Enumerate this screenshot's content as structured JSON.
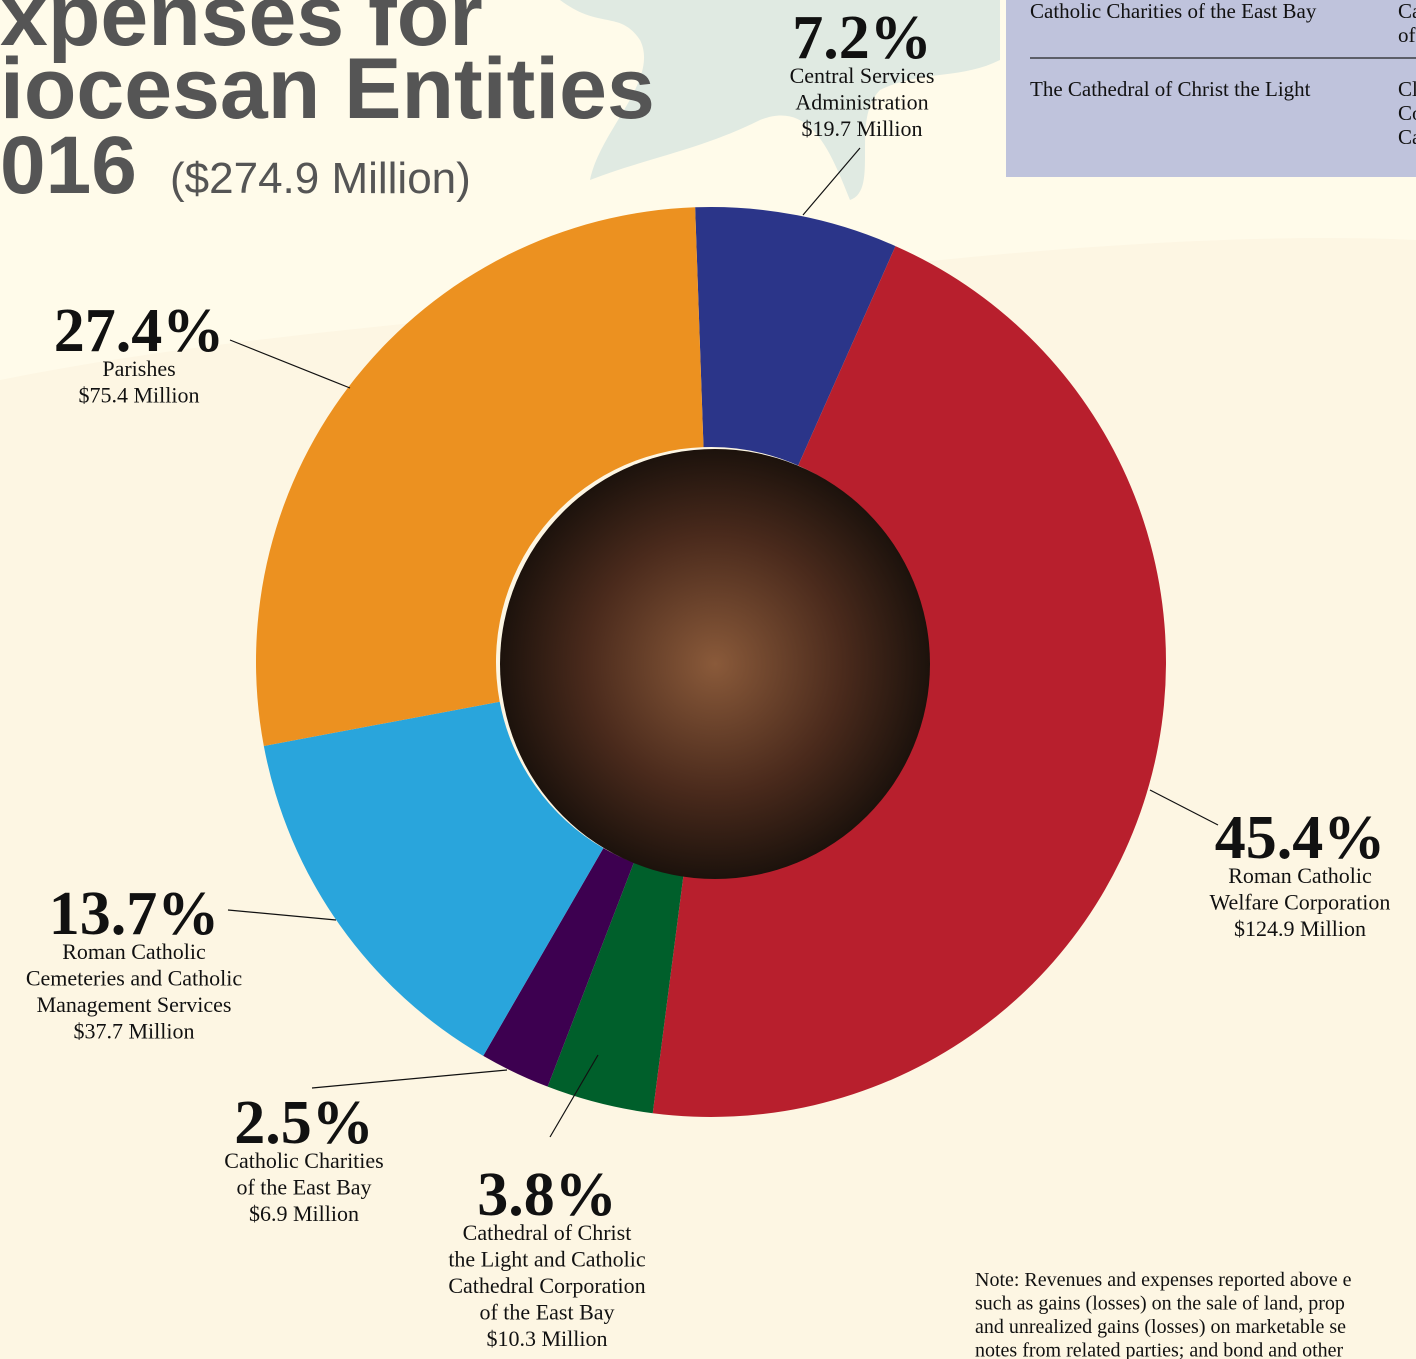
{
  "chart_data": {
    "type": "pie",
    "title_lines": [
      "xpenses for",
      "iocesan Entities",
      "016"
    ],
    "subtitle": "($274.9 Million)",
    "categories": [
      "Central Services Administration",
      "Roman Catholic Welfare Corporation",
      "Cathedral of Christ the Light and Catholic Cathedral Corporation of the East Bay",
      "Catholic Charities of the East Bay",
      "Roman Catholic Cemeteries and Catholic Management Services",
      "Parishes"
    ],
    "label_lines": [
      [
        "Central Services",
        "Administration"
      ],
      [
        "Roman Catholic",
        "Welfare Corporation"
      ],
      [
        "Cathedral of Christ",
        "the Light and Catholic",
        "Cathedral Corporation",
        "of the East Bay"
      ],
      [
        "Catholic Charities",
        "of the East Bay"
      ],
      [
        "Roman Catholic",
        "Cemeteries and Catholic",
        "Management Services"
      ],
      [
        "Parishes"
      ]
    ],
    "values": [
      7.2,
      45.4,
      3.8,
      2.5,
      13.7,
      27.4
    ],
    "value_labels": [
      "7.2%",
      "45.4%",
      "3.8%",
      "2.5%",
      "13.7%",
      "27.4%"
    ],
    "amounts": [
      19.7,
      124.9,
      10.3,
      6.9,
      37.7,
      75.4
    ],
    "amount_labels": [
      "$19.7 Million",
      "$124.9 Million",
      "$10.3 Million",
      "$6.9 Million",
      "$37.7 Million",
      "$75.4 Million"
    ],
    "colors": [
      "#2b3589",
      "#b81f2d",
      "#005f2b",
      "#3d0050",
      "#29a5dc",
      "#ec9120"
    ]
  },
  "table": {
    "rows": [
      [
        [
          "Catholic Charities of the East Bay"
        ],
        [
          "Ca",
          "of"
        ]
      ],
      [
        [
          "The Cathedral of Christ the Light"
        ],
        [
          "Cl",
          "Co",
          "Ca"
        ]
      ]
    ]
  },
  "note_lines": [
    "Note: Revenues and expenses reported above e",
    "such as gains (losses) on the sale of land, prop",
    "and unrealized gains (losses) on marketable se",
    "notes from related parties; and bond and other"
  ]
}
